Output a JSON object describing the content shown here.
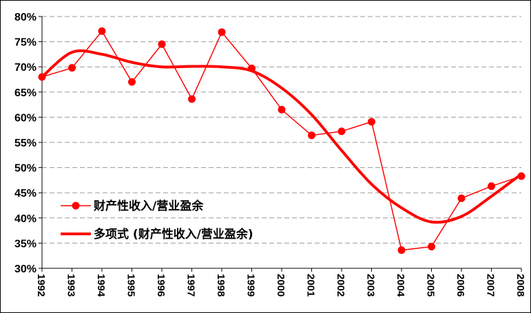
{
  "chart_data": {
    "type": "line",
    "x": [
      "1992",
      "1993",
      "1994",
      "1995",
      "1996",
      "1997",
      "1998",
      "1999",
      "2000",
      "2001",
      "2002",
      "2003",
      "2004",
      "2005",
      "2006",
      "2007",
      "2008"
    ],
    "ylim": [
      30,
      80
    ],
    "yticks": [
      30,
      35,
      40,
      45,
      50,
      55,
      60,
      65,
      70,
      75,
      80
    ],
    "ytick_labels": [
      "30%",
      "35%",
      "40%",
      "45%",
      "50%",
      "55%",
      "60%",
      "65%",
      "70%",
      "75%",
      "80%"
    ],
    "grid": "horizontal dashed",
    "legend_position": "left-center",
    "series": [
      {
        "name": "财产性收入/营业盈余",
        "style": "line-with-markers",
        "color": "#ff0000",
        "values": [
          68.0,
          69.8,
          77.1,
          67.0,
          74.5,
          63.6,
          76.9,
          69.7,
          61.5,
          56.4,
          57.2,
          59.1,
          33.6,
          34.3,
          43.9,
          46.3,
          48.3
        ]
      },
      {
        "name": "多项式 (财产性收入/营业盈余)",
        "style": "trendline",
        "color": "#ff0000",
        "values": [
          68.0,
          72.9,
          72.5,
          70.9,
          70.0,
          70.1,
          70.0,
          69.2,
          65.8,
          60.5,
          53.4,
          46.7,
          42.0,
          39.2,
          40.3,
          44.3,
          48.7
        ]
      }
    ],
    "legend": [
      "财产性收入/营业盈余",
      "多项式 (财产性收入/营业盈余)"
    ]
  }
}
